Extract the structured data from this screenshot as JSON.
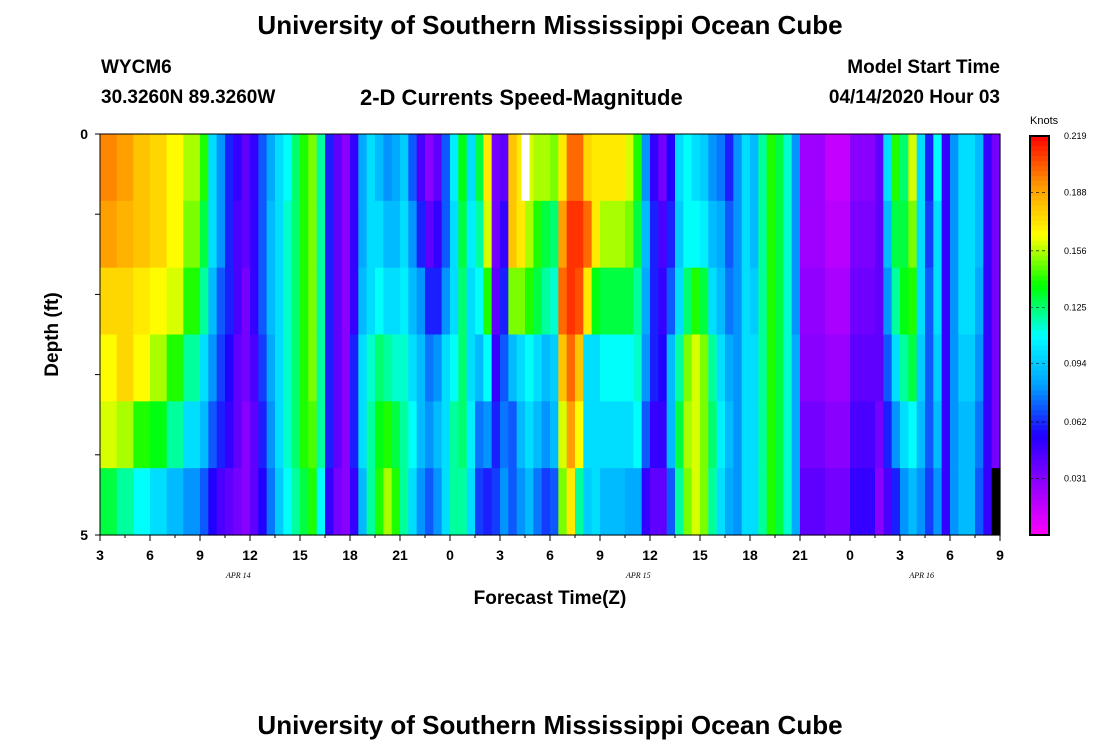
{
  "header": {
    "title": "University of Southern Mississippi Ocean Cube",
    "footer_title": "University of Southern Mississippi Ocean Cube",
    "station": "WYCM6",
    "coordinates": "30.3260N 89.3260W",
    "subtitle": "2-D Currents Speed-Magnitude",
    "model_start_label": "Model Start Time",
    "model_start_value": "04/14/2020 Hour 03"
  },
  "chart_data": {
    "type": "heatmap",
    "title": "2-D Currents Speed-Magnitude",
    "xlabel": "Forecast Time(Z)",
    "ylabel": "Depth (ft)",
    "x_tick_labels": [
      "3",
      "6",
      "9",
      "12",
      "15",
      "18",
      "21",
      "0",
      "3",
      "6",
      "9",
      "12",
      "15",
      "18",
      "21",
      "0",
      "3",
      "6",
      "9"
    ],
    "x_tick_hours": [
      0,
      3,
      6,
      9,
      12,
      15,
      18,
      21,
      24,
      27,
      30,
      33,
      36,
      39,
      42,
      45,
      48,
      51,
      54
    ],
    "date_labels": [
      {
        "text": "APR 14",
        "hour": 8.3
      },
      {
        "text": "APR 15",
        "hour": 32.3
      },
      {
        "text": "APR 16",
        "hour": 49.3
      }
    ],
    "x_range_hours": [
      0,
      54
    ],
    "y_tick_labels": [
      "0",
      "5"
    ],
    "y_range_ft": [
      0,
      5
    ],
    "depth_levels_ft": [
      0,
      1,
      2,
      3,
      4,
      5
    ],
    "colorbar_title": "Knots",
    "colorbar_ticks": [
      "0.219",
      "0.188",
      "0.156",
      "0.125",
      "0.094",
      "0.062",
      "0.031"
    ],
    "colorbar_tick_values": [
      0.219,
      0.188,
      0.156,
      0.125,
      0.094,
      0.062,
      0.031
    ],
    "value_range": [
      0,
      0.219
    ],
    "colormap": [
      "#ff00ff",
      "#9400ff",
      "#2000ff",
      "#00a0ff",
      "#00ffff",
      "#00ff00",
      "#ffff00",
      "#ff9900",
      "#ff0000"
    ],
    "missing_color": "#ffffff",
    "time_step_hours": 0.5,
    "column_profiles": [
      {
        "from": 0,
        "to": 1,
        "v": [
          0.195,
          0.19,
          0.175,
          0.165,
          0.16,
          0.13
        ]
      },
      {
        "from": 1,
        "to": 2,
        "v": [
          0.19,
          0.185,
          0.175,
          0.175,
          0.155,
          0.12
        ]
      },
      {
        "from": 2,
        "to": 3,
        "v": [
          0.18,
          0.18,
          0.17,
          0.165,
          0.14,
          0.11
        ]
      },
      {
        "from": 3,
        "to": 4,
        "v": [
          0.175,
          0.175,
          0.165,
          0.155,
          0.135,
          0.1
        ]
      },
      {
        "from": 4,
        "to": 5,
        "v": [
          0.165,
          0.165,
          0.16,
          0.14,
          0.12,
          0.09
        ]
      },
      {
        "from": 5,
        "to": 6,
        "v": [
          0.155,
          0.15,
          0.14,
          0.12,
          0.1,
          0.08
        ]
      },
      {
        "from": 6,
        "to": 6.5,
        "v": [
          0.14,
          0.13,
          0.12,
          0.1,
          0.09,
          0.07
        ]
      },
      {
        "from": 6.5,
        "to": 7,
        "v": [
          0.1,
          0.1,
          0.09,
          0.08,
          0.07,
          0.055
        ]
      },
      {
        "from": 7,
        "to": 7.5,
        "v": [
          0.08,
          0.08,
          0.07,
          0.065,
          0.06,
          0.045
        ]
      },
      {
        "from": 7.5,
        "to": 8,
        "v": [
          0.06,
          0.06,
          0.06,
          0.055,
          0.05,
          0.04
        ]
      },
      {
        "from": 8,
        "to": 8.5,
        "v": [
          0.05,
          0.045,
          0.045,
          0.04,
          0.04,
          0.035
        ]
      },
      {
        "from": 8.5,
        "to": 9,
        "v": [
          0.04,
          0.04,
          0.035,
          0.035,
          0.03,
          0.03
        ]
      },
      {
        "from": 9,
        "to": 9.5,
        "v": [
          0.05,
          0.05,
          0.05,
          0.045,
          0.04,
          0.04
        ]
      },
      {
        "from": 9.5,
        "to": 10,
        "v": [
          0.07,
          0.07,
          0.07,
          0.065,
          0.06,
          0.055
        ]
      },
      {
        "from": 10,
        "to": 10.5,
        "v": [
          0.085,
          0.09,
          0.09,
          0.085,
          0.08,
          0.075
        ]
      },
      {
        "from": 10.5,
        "to": 11,
        "v": [
          0.1,
          0.1,
          0.1,
          0.1,
          0.1,
          0.095
        ]
      },
      {
        "from": 11,
        "to": 11.5,
        "v": [
          0.11,
          0.115,
          0.115,
          0.115,
          0.115,
          0.11
        ]
      },
      {
        "from": 11.5,
        "to": 12,
        "v": [
          0.125,
          0.125,
          0.125,
          0.125,
          0.125,
          0.12
        ]
      },
      {
        "from": 12,
        "to": 12.5,
        "v": [
          0.14,
          0.14,
          0.14,
          0.14,
          0.14,
          0.13
        ]
      },
      {
        "from": 12.5,
        "to": 13,
        "v": [
          0.15,
          0.15,
          0.15,
          0.15,
          0.145,
          0.14
        ]
      },
      {
        "from": 13,
        "to": 13.5,
        "v": [
          0.12,
          0.12,
          0.12,
          0.12,
          0.12,
          0.11
        ]
      },
      {
        "from": 13.5,
        "to": 14,
        "v": [
          0.06,
          0.06,
          0.06,
          0.06,
          0.06,
          0.05
        ]
      },
      {
        "from": 14,
        "to": 14.5,
        "v": [
          0.04,
          0.04,
          0.04,
          0.04,
          0.04,
          0.035
        ]
      },
      {
        "from": 14.5,
        "to": 15,
        "v": [
          0.03,
          0.03,
          0.03,
          0.03,
          0.03,
          0.03
        ]
      },
      {
        "from": 15,
        "to": 15.5,
        "v": [
          0.05,
          0.05,
          0.05,
          0.06,
          0.06,
          0.05
        ]
      },
      {
        "from": 15.5,
        "to": 16,
        "v": [
          0.085,
          0.085,
          0.09,
          0.1,
          0.1,
          0.09
        ]
      },
      {
        "from": 16,
        "to": 16.5,
        "v": [
          0.1,
          0.1,
          0.1,
          0.115,
          0.12,
          0.12
        ]
      },
      {
        "from": 16.5,
        "to": 17,
        "v": [
          0.09,
          0.1,
          0.11,
          0.125,
          0.135,
          0.14
        ]
      },
      {
        "from": 17,
        "to": 17.5,
        "v": [
          0.08,
          0.09,
          0.1,
          0.12,
          0.14,
          0.155
        ]
      },
      {
        "from": 17.5,
        "to": 18,
        "v": [
          0.085,
          0.09,
          0.1,
          0.115,
          0.13,
          0.14
        ]
      },
      {
        "from": 18,
        "to": 18.5,
        "v": [
          0.095,
          0.1,
          0.105,
          0.115,
          0.12,
          0.12
        ]
      },
      {
        "from": 18.5,
        "to": 19,
        "v": [
          0.07,
          0.08,
          0.09,
          0.1,
          0.11,
          0.1
        ]
      },
      {
        "from": 19,
        "to": 19.5,
        "v": [
          0.045,
          0.06,
          0.08,
          0.09,
          0.09,
          0.08
        ]
      },
      {
        "from": 19.5,
        "to": 20,
        "v": [
          0.03,
          0.04,
          0.06,
          0.075,
          0.08,
          0.07
        ]
      },
      {
        "from": 20,
        "to": 20.5,
        "v": [
          0.04,
          0.05,
          0.06,
          0.08,
          0.09,
          0.08
        ]
      },
      {
        "from": 20.5,
        "to": 21,
        "v": [
          0.07,
          0.07,
          0.08,
          0.1,
          0.1,
          0.1
        ]
      },
      {
        "from": 21,
        "to": 21.5,
        "v": [
          0.105,
          0.1,
          0.1,
          0.11,
          0.12,
          0.12
        ]
      },
      {
        "from": 21.5,
        "to": 22,
        "v": [
          0.135,
          0.13,
          0.125,
          0.125,
          0.125,
          0.12
        ]
      },
      {
        "from": 22,
        "to": 22.5,
        "v": [
          0.1,
          0.105,
          0.1,
          0.1,
          0.105,
          0.1
        ]
      },
      {
        "from": 22.5,
        "to": 23,
        "v": [
          0.13,
          0.12,
          0.11,
          0.09,
          0.075,
          0.065
        ]
      },
      {
        "from": 23,
        "to": 23.5,
        "v": [
          0.17,
          0.16,
          0.14,
          0.11,
          0.08,
          0.06
        ]
      },
      {
        "from": 23.5,
        "to": 24,
        "v": [
          0.035,
          0.035,
          0.04,
          0.05,
          0.06,
          0.065
        ]
      },
      {
        "from": 24,
        "to": 24.5,
        "v": [
          0.04,
          0.05,
          0.06,
          0.07,
          0.075,
          0.08
        ]
      },
      {
        "from": 24.5,
        "to": 25,
        "v": [
          0.18,
          0.18,
          0.15,
          0.09,
          0.07,
          0.07
        ]
      },
      {
        "from": 25,
        "to": 25.5,
        "v": [
          0.17,
          0.17,
          0.15,
          0.1,
          0.09,
          0.08
        ]
      },
      {
        "from": 25.5,
        "to": 26,
        "v": [
          0.16,
          0.155,
          0.14,
          0.11,
          0.1,
          0.09
        ]
      },
      {
        "from": 26,
        "to": 26.5,
        "v": [
          0.155,
          0.14,
          0.13,
          0.1,
          0.09,
          0.075
        ]
      },
      {
        "from": 26.5,
        "to": 27,
        "v": [
          0.155,
          0.13,
          0.12,
          0.09,
          0.08,
          0.065
        ]
      },
      {
        "from": 27,
        "to": 27.5,
        "v": [
          0.15,
          0.125,
          0.115,
          0.095,
          0.09,
          0.07
        ]
      },
      {
        "from": 27.5,
        "to": 28,
        "v": [
          0.17,
          0.19,
          0.2,
          0.18,
          0.16,
          0.15
        ]
      },
      {
        "from": 28,
        "to": 28.5,
        "v": [
          0.2,
          0.21,
          0.21,
          0.2,
          0.19,
          0.17
        ]
      },
      {
        "from": 28.5,
        "to": 29,
        "v": [
          0.2,
          0.21,
          0.205,
          0.18,
          0.165,
          0.12
        ]
      },
      {
        "from": 29,
        "to": 29.5,
        "v": [
          0.175,
          0.2,
          0.17,
          0.1,
          0.1,
          0.095
        ]
      },
      {
        "from": 29.5,
        "to": 30,
        "v": [
          0.17,
          0.17,
          0.135,
          0.1,
          0.1,
          0.1
        ]
      },
      {
        "from": 30,
        "to": 31.5,
        "v": [
          0.17,
          0.155,
          0.13,
          0.11,
          0.1,
          0.09
        ]
      },
      {
        "from": 31.5,
        "to": 32,
        "v": [
          0.16,
          0.15,
          0.13,
          0.11,
          0.1,
          0.085
        ]
      },
      {
        "from": 32,
        "to": 32.5,
        "v": [
          0.14,
          0.13,
          0.12,
          0.115,
          0.11,
          0.085
        ]
      },
      {
        "from": 32.5,
        "to": 33,
        "v": [
          0.08,
          0.09,
          0.085,
          0.08,
          0.07,
          0.05
        ]
      },
      {
        "from": 33,
        "to": 33.5,
        "v": [
          0.05,
          0.06,
          0.06,
          0.06,
          0.05,
          0.04
        ]
      },
      {
        "from": 33.5,
        "to": 34,
        "v": [
          0.035,
          0.045,
          0.05,
          0.055,
          0.05,
          0.04
        ]
      },
      {
        "from": 34,
        "to": 34.5,
        "v": [
          0.055,
          0.06,
          0.07,
          0.09,
          0.09,
          0.07
        ]
      },
      {
        "from": 34.5,
        "to": 35,
        "v": [
          0.1,
          0.095,
          0.1,
          0.12,
          0.13,
          0.12
        ]
      },
      {
        "from": 35,
        "to": 35.5,
        "v": [
          0.11,
          0.11,
          0.125,
          0.15,
          0.155,
          0.15
        ]
      },
      {
        "from": 35.5,
        "to": 36,
        "v": [
          0.1,
          0.11,
          0.14,
          0.16,
          0.16,
          0.16
        ]
      },
      {
        "from": 36,
        "to": 36.5,
        "v": [
          0.095,
          0.105,
          0.13,
          0.15,
          0.15,
          0.15
        ]
      },
      {
        "from": 36.5,
        "to": 37,
        "v": [
          0.08,
          0.09,
          0.1,
          0.12,
          0.125,
          0.12
        ]
      },
      {
        "from": 37,
        "to": 37.5,
        "v": [
          0.075,
          0.085,
          0.09,
          0.1,
          0.105,
          0.1
        ]
      },
      {
        "from": 37.5,
        "to": 38,
        "v": [
          0.06,
          0.07,
          0.075,
          0.085,
          0.09,
          0.085
        ]
      },
      {
        "from": 38,
        "to": 38.5,
        "v": [
          0.08,
          0.08,
          0.08,
          0.08,
          0.08,
          0.08
        ]
      },
      {
        "from": 38.5,
        "to": 39,
        "v": [
          0.1,
          0.1,
          0.1,
          0.1,
          0.1,
          0.1
        ]
      },
      {
        "from": 39,
        "to": 39.5,
        "v": [
          0.09,
          0.09,
          0.095,
          0.1,
          0.1,
          0.1
        ]
      },
      {
        "from": 39.5,
        "to": 40,
        "v": [
          0.12,
          0.12,
          0.12,
          0.12,
          0.12,
          0.12
        ]
      },
      {
        "from": 40,
        "to": 40.5,
        "v": [
          0.14,
          0.14,
          0.14,
          0.14,
          0.14,
          0.14
        ]
      },
      {
        "from": 40.5,
        "to": 41,
        "v": [
          0.13,
          0.13,
          0.13,
          0.13,
          0.13,
          0.13
        ]
      },
      {
        "from": 41,
        "to": 41.5,
        "v": [
          0.115,
          0.115,
          0.115,
          0.115,
          0.115,
          0.115
        ]
      },
      {
        "from": 41.5,
        "to": 42,
        "v": [
          0.08,
          0.08,
          0.08,
          0.085,
          0.085,
          0.085
        ]
      },
      {
        "from": 42,
        "to": 43.5,
        "v": [
          0.025,
          0.025,
          0.028,
          0.03,
          0.035,
          0.04
        ]
      },
      {
        "from": 43.5,
        "to": 45,
        "v": [
          0.015,
          0.018,
          0.022,
          0.026,
          0.03,
          0.035
        ]
      },
      {
        "from": 45,
        "to": 46.5,
        "v": [
          0.03,
          0.033,
          0.036,
          0.04,
          0.045,
          0.05
        ]
      },
      {
        "from": 46.5,
        "to": 47,
        "v": [
          0.04,
          0.04,
          0.04,
          0.04,
          0.035,
          0.03
        ]
      },
      {
        "from": 47,
        "to": 47.5,
        "v": [
          0.1,
          0.09,
          0.08,
          0.07,
          0.06,
          0.045
        ]
      },
      {
        "from": 47.5,
        "to": 48,
        "v": [
          0.14,
          0.13,
          0.12,
          0.1,
          0.08,
          0.06
        ]
      },
      {
        "from": 48,
        "to": 48.5,
        "v": [
          0.125,
          0.13,
          0.135,
          0.12,
          0.1,
          0.08
        ]
      },
      {
        "from": 48.5,
        "to": 49,
        "v": [
          0.16,
          0.15,
          0.14,
          0.13,
          0.11,
          0.09
        ]
      },
      {
        "from": 49,
        "to": 49.5,
        "v": [
          0.1,
          0.1,
          0.1,
          0.095,
          0.09,
          0.08
        ]
      },
      {
        "from": 49.5,
        "to": 50,
        "v": [
          0.06,
          0.065,
          0.07,
          0.07,
          0.07,
          0.065
        ]
      },
      {
        "from": 50,
        "to": 50.5,
        "v": [
          0.11,
          0.1,
          0.1,
          0.095,
          0.09,
          0.08
        ]
      },
      {
        "from": 50.5,
        "to": 51,
        "v": [
          0.05,
          0.05,
          0.05,
          0.05,
          0.05,
          0.05
        ]
      },
      {
        "from": 51,
        "to": 51.5,
        "v": [
          0.08,
          0.08,
          0.08,
          0.08,
          0.08,
          0.08
        ]
      },
      {
        "from": 51.5,
        "to": 52.5,
        "v": [
          0.1,
          0.1,
          0.1,
          0.095,
          0.09,
          0.09
        ]
      },
      {
        "from": 52.5,
        "to": 53,
        "v": [
          0.09,
          0.09,
          0.085,
          0.08,
          0.075,
          0.07
        ]
      },
      {
        "from": 53,
        "to": 53.5,
        "v": [
          0.05,
          0.05,
          0.05,
          0.05,
          0.05,
          0.05
        ]
      },
      {
        "from": 53.5,
        "to": 54,
        "v": [
          0.035,
          0.035,
          0.035,
          0.035,
          0.035,
          0.0
        ]
      }
    ],
    "missing_cells": [
      {
        "hour": 25.5,
        "depth_ft": 0
      }
    ]
  }
}
